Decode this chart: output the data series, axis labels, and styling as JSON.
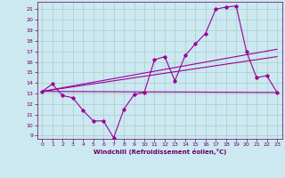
{
  "bg_color": "#cce8f0",
  "line_color": "#990099",
  "grid_color": "#aacccc",
  "xlabel": "Windchill (Refroidissement éolien,°C)",
  "xlabel_color": "#660066",
  "tick_color": "#660066",
  "xlim": [
    -0.5,
    23.5
  ],
  "ylim": [
    8.7,
    21.7
  ],
  "yticks": [
    9,
    10,
    11,
    12,
    13,
    14,
    15,
    16,
    17,
    18,
    19,
    20,
    21
  ],
  "xticks": [
    0,
    1,
    2,
    3,
    4,
    5,
    6,
    7,
    8,
    9,
    10,
    11,
    12,
    13,
    14,
    15,
    16,
    17,
    18,
    19,
    20,
    21,
    22,
    23
  ],
  "line1_x": [
    0,
    1,
    2,
    3,
    4,
    5,
    6,
    7,
    8,
    9,
    10,
    11,
    12,
    13,
    14,
    15,
    16,
    17,
    18,
    19,
    20,
    21,
    22,
    23
  ],
  "line1_y": [
    13.2,
    13.9,
    12.8,
    12.6,
    11.4,
    10.4,
    10.4,
    8.8,
    11.5,
    12.9,
    13.1,
    16.2,
    16.5,
    14.2,
    16.6,
    17.7,
    18.7,
    21.0,
    21.2,
    21.3,
    17.0,
    14.5,
    14.7,
    13.1
  ],
  "line2_x": [
    0,
    23
  ],
  "line2_y": [
    13.2,
    13.1
  ],
  "line3_x": [
    0,
    23
  ],
  "line3_y": [
    13.2,
    16.5
  ],
  "line4_x": [
    0,
    23
  ],
  "line4_y": [
    13.2,
    17.2
  ]
}
